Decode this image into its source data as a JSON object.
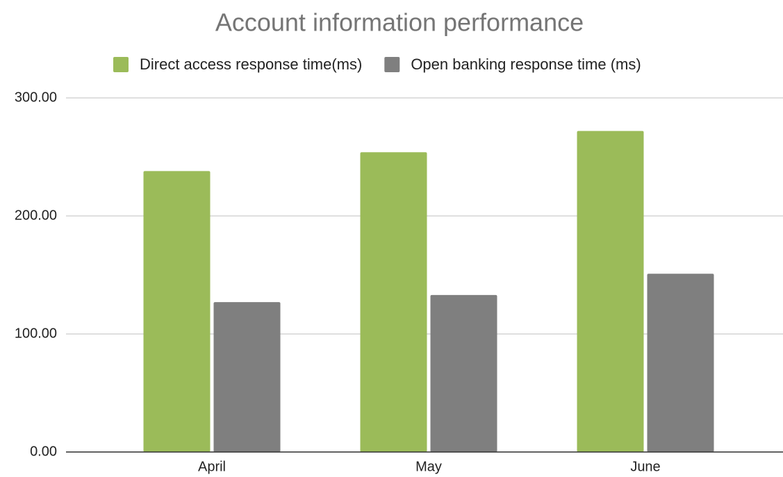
{
  "chart_data": {
    "type": "bar",
    "title": "Account information performance",
    "categories": [
      "April",
      "May",
      "June"
    ],
    "series": [
      {
        "name": "Direct access response time(ms)",
        "color": "#9bbb59",
        "values": [
          238,
          254,
          272
        ]
      },
      {
        "name": "Open banking response time (ms)",
        "color": "#7f7f7f",
        "values": [
          127,
          133,
          151
        ]
      }
    ],
    "ylim": [
      0,
      300
    ],
    "yticks": [
      {
        "value": 0,
        "label": "0.00"
      },
      {
        "value": 100,
        "label": "100.00"
      },
      {
        "value": 200,
        "label": "200.00"
      },
      {
        "value": 300,
        "label": "300.00"
      }
    ],
    "grid": true,
    "legend": "top"
  }
}
